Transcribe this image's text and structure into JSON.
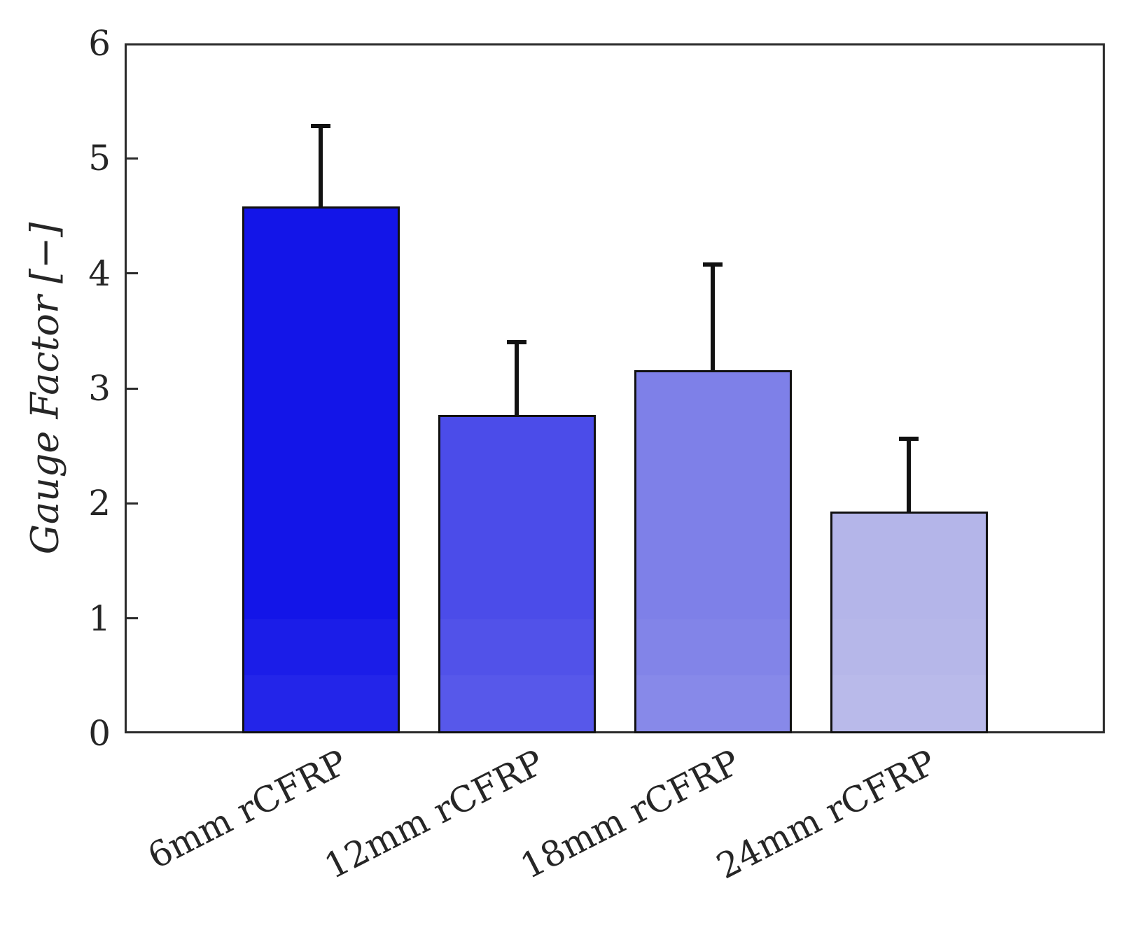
{
  "chart_data": {
    "type": "bar",
    "title": "",
    "xlabel": "",
    "ylabel": "Gauge Factor [−]",
    "categories": [
      "6mm rCFRP",
      "12mm rCFRP",
      "18mm rCFRP",
      "24mm rCFRP"
    ],
    "values": [
      4.58,
      2.77,
      3.16,
      1.93
    ],
    "error_plus": [
      0.7,
      0.63,
      0.92,
      0.63
    ],
    "ylim": [
      0,
      6
    ],
    "yticks": [
      "0",
      "1",
      "2",
      "3",
      "4",
      "5",
      "6"
    ],
    "grid": false,
    "legend": "none",
    "bar_width_fraction": 0.8,
    "bar_colors": [
      "#1315E8",
      "#4B4CE9",
      "#7E80E8",
      "#B4B5E9"
    ],
    "bar_edge_color": "#111111",
    "errorbar_color": "#111111",
    "axis_color": "#2a2a2a",
    "text_color": "#262626",
    "background_color": "#FFFFFF"
  }
}
